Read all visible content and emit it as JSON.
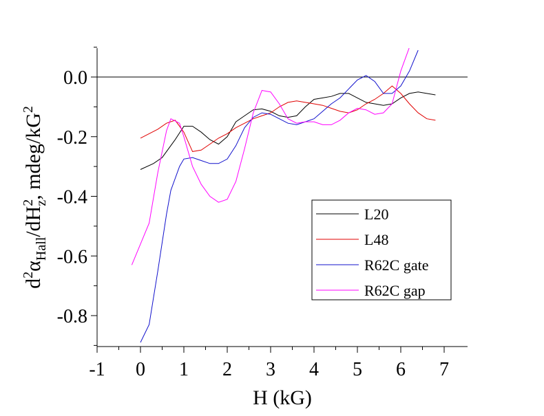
{
  "chart_data": {
    "type": "line",
    "xlabel": "H (kG)",
    "ylabel": "d²α_Hall/dH²_z, mdeg/kG²",
    "ylabel_parts": {
      "d": "d",
      "sup2a": "2",
      "alpha": "α",
      "sub_hall": "Hall",
      "mid": "/dH",
      "sup2b": "2",
      "sub_z": "z",
      "units": ", mdeg/kG",
      "sup2c": "2"
    },
    "xlim": [
      -1,
      7.5
    ],
    "ylim": [
      -0.9,
      0.1
    ],
    "xticks": [
      -1,
      0,
      1,
      2,
      3,
      4,
      5,
      6,
      7
    ],
    "xtick_labels": [
      "-1",
      "0",
      "1",
      "2",
      "3",
      "4",
      "5",
      "6",
      "7"
    ],
    "yticks": [
      0.0,
      -0.2,
      -0.4,
      -0.6,
      -0.8
    ],
    "ytick_labels": [
      "0.0",
      "-0.2",
      "-0.4",
      "-0.6",
      "-0.8"
    ],
    "reference_line_y": 0.0,
    "grid": false,
    "legend_position": "lower-right",
    "series": [
      {
        "name": "L20",
        "color": "#000000",
        "points": [
          [
            0.0,
            -0.31
          ],
          [
            0.3,
            -0.29
          ],
          [
            0.5,
            -0.27
          ],
          [
            0.8,
            -0.21
          ],
          [
            1.0,
            -0.165
          ],
          [
            1.2,
            -0.165
          ],
          [
            1.4,
            -0.185
          ],
          [
            1.6,
            -0.21
          ],
          [
            1.8,
            -0.225
          ],
          [
            2.0,
            -0.2
          ],
          [
            2.2,
            -0.15
          ],
          [
            2.4,
            -0.13
          ],
          [
            2.6,
            -0.11
          ],
          [
            2.8,
            -0.107
          ],
          [
            3.0,
            -0.115
          ],
          [
            3.2,
            -0.13
          ],
          [
            3.4,
            -0.135
          ],
          [
            3.6,
            -0.13
          ],
          [
            3.8,
            -0.1
          ],
          [
            4.0,
            -0.075
          ],
          [
            4.2,
            -0.07
          ],
          [
            4.4,
            -0.065
          ],
          [
            4.6,
            -0.055
          ],
          [
            4.8,
            -0.055
          ],
          [
            5.0,
            -0.07
          ],
          [
            5.2,
            -0.085
          ],
          [
            5.4,
            -0.09
          ],
          [
            5.6,
            -0.095
          ],
          [
            5.8,
            -0.09
          ],
          [
            6.0,
            -0.07
          ],
          [
            6.2,
            -0.055
          ],
          [
            6.4,
            -0.05
          ],
          [
            6.6,
            -0.055
          ],
          [
            6.8,
            -0.06
          ]
        ]
      },
      {
        "name": "L48",
        "color": "#e00000",
        "points": [
          [
            0.0,
            -0.205
          ],
          [
            0.2,
            -0.19
          ],
          [
            0.4,
            -0.175
          ],
          [
            0.6,
            -0.155
          ],
          [
            0.8,
            -0.145
          ],
          [
            1.0,
            -0.185
          ],
          [
            1.2,
            -0.25
          ],
          [
            1.4,
            -0.245
          ],
          [
            1.6,
            -0.225
          ],
          [
            1.8,
            -0.205
          ],
          [
            2.0,
            -0.19
          ],
          [
            2.2,
            -0.17
          ],
          [
            2.4,
            -0.155
          ],
          [
            2.6,
            -0.14
          ],
          [
            2.8,
            -0.13
          ],
          [
            3.0,
            -0.12
          ],
          [
            3.2,
            -0.1
          ],
          [
            3.4,
            -0.085
          ],
          [
            3.6,
            -0.08
          ],
          [
            3.8,
            -0.085
          ],
          [
            4.0,
            -0.09
          ],
          [
            4.2,
            -0.095
          ],
          [
            4.4,
            -0.105
          ],
          [
            4.6,
            -0.115
          ],
          [
            4.8,
            -0.12
          ],
          [
            5.0,
            -0.11
          ],
          [
            5.2,
            -0.09
          ],
          [
            5.4,
            -0.075
          ],
          [
            5.6,
            -0.055
          ],
          [
            5.8,
            -0.03
          ],
          [
            6.0,
            -0.055
          ],
          [
            6.2,
            -0.09
          ],
          [
            6.4,
            -0.12
          ],
          [
            6.6,
            -0.14
          ],
          [
            6.8,
            -0.145
          ]
        ]
      },
      {
        "name": "R62C gate",
        "color": "#1010cc",
        "points": [
          [
            0.0,
            -0.89
          ],
          [
            0.2,
            -0.83
          ],
          [
            0.4,
            -0.65
          ],
          [
            0.6,
            -0.46
          ],
          [
            0.7,
            -0.38
          ],
          [
            0.9,
            -0.3
          ],
          [
            1.0,
            -0.275
          ],
          [
            1.2,
            -0.27
          ],
          [
            1.4,
            -0.28
          ],
          [
            1.6,
            -0.29
          ],
          [
            1.8,
            -0.29
          ],
          [
            2.0,
            -0.275
          ],
          [
            2.2,
            -0.23
          ],
          [
            2.4,
            -0.17
          ],
          [
            2.6,
            -0.135
          ],
          [
            2.8,
            -0.12
          ],
          [
            3.0,
            -0.125
          ],
          [
            3.2,
            -0.14
          ],
          [
            3.4,
            -0.155
          ],
          [
            3.6,
            -0.16
          ],
          [
            3.8,
            -0.15
          ],
          [
            4.0,
            -0.14
          ],
          [
            4.2,
            -0.115
          ],
          [
            4.4,
            -0.09
          ],
          [
            4.6,
            -0.07
          ],
          [
            4.8,
            -0.04
          ],
          [
            5.0,
            -0.01
          ],
          [
            5.2,
            0.005
          ],
          [
            5.4,
            -0.015
          ],
          [
            5.6,
            -0.055
          ],
          [
            5.8,
            -0.055
          ],
          [
            6.0,
            -0.03
          ],
          [
            6.2,
            0.02
          ],
          [
            6.4,
            0.09
          ]
        ]
      },
      {
        "name": "R62C gap",
        "color": "#ff00ff",
        "points": [
          [
            -0.2,
            -0.63
          ],
          [
            0.0,
            -0.56
          ],
          [
            0.2,
            -0.49
          ],
          [
            0.4,
            -0.32
          ],
          [
            0.6,
            -0.18
          ],
          [
            0.7,
            -0.14
          ],
          [
            0.9,
            -0.155
          ],
          [
            1.0,
            -0.2
          ],
          [
            1.2,
            -0.3
          ],
          [
            1.4,
            -0.36
          ],
          [
            1.6,
            -0.4
          ],
          [
            1.8,
            -0.42
          ],
          [
            2.0,
            -0.41
          ],
          [
            2.2,
            -0.35
          ],
          [
            2.4,
            -0.24
          ],
          [
            2.6,
            -0.12
          ],
          [
            2.8,
            -0.045
          ],
          [
            3.0,
            -0.05
          ],
          [
            3.2,
            -0.09
          ],
          [
            3.4,
            -0.14
          ],
          [
            3.6,
            -0.155
          ],
          [
            3.8,
            -0.15
          ],
          [
            4.0,
            -0.15
          ],
          [
            4.2,
            -0.16
          ],
          [
            4.4,
            -0.16
          ],
          [
            4.6,
            -0.145
          ],
          [
            4.8,
            -0.12
          ],
          [
            5.0,
            -0.105
          ],
          [
            5.2,
            -0.11
          ],
          [
            5.4,
            -0.125
          ],
          [
            5.6,
            -0.12
          ],
          [
            5.8,
            -0.09
          ],
          [
            6.0,
            0.02
          ],
          [
            6.2,
            0.1
          ]
        ]
      }
    ]
  }
}
